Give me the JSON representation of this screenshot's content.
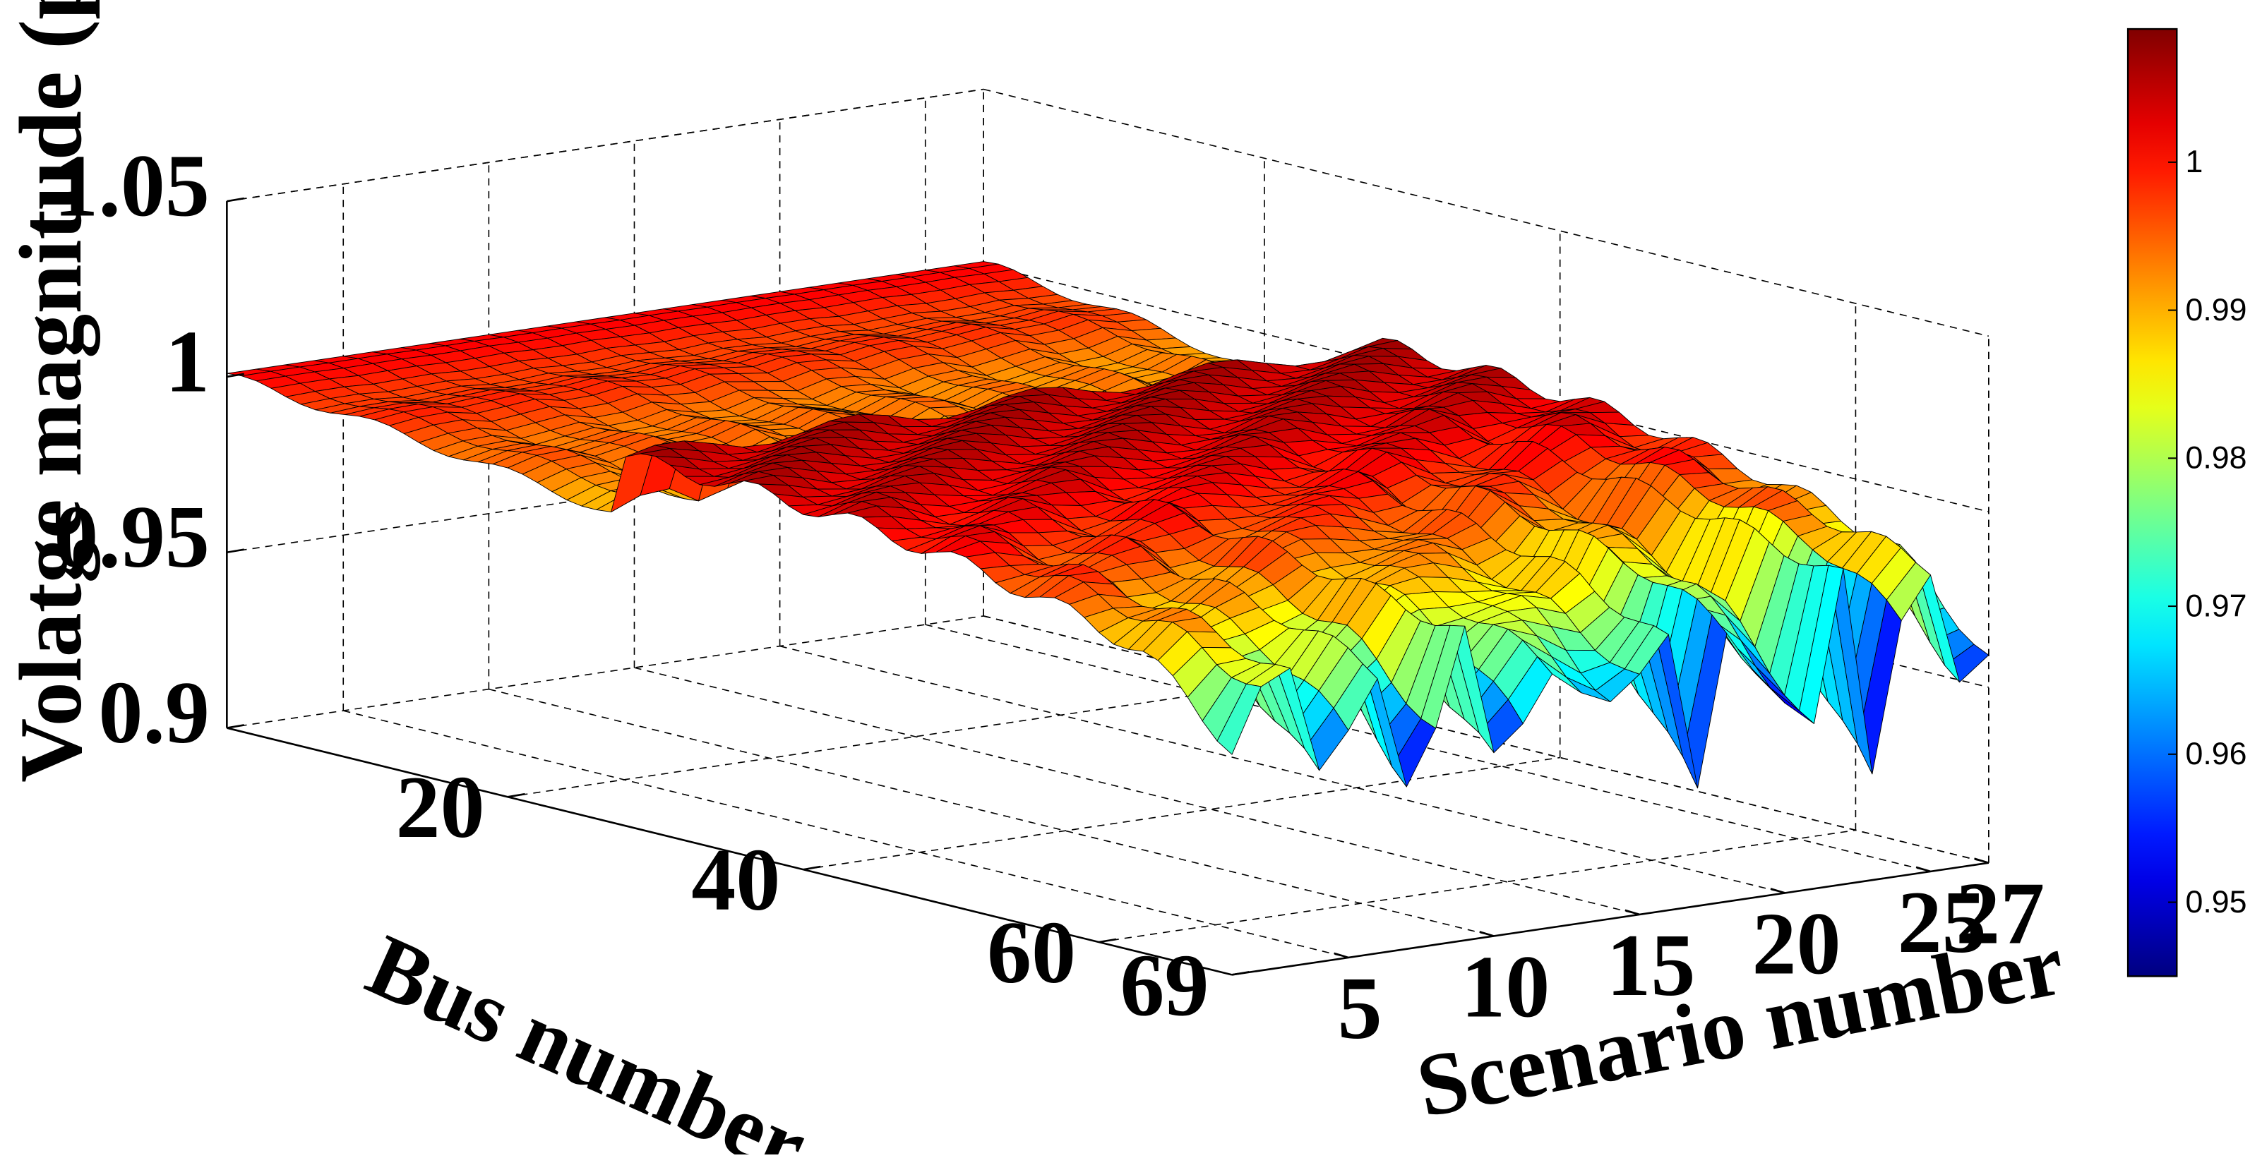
{
  "chart_data": {
    "type": "surface3d",
    "title": "",
    "zlabel": "Volatge magnitude (p.u)",
    "xlabel": "Scenario number",
    "ylabel": "Bus number",
    "x_range": [
      1,
      27
    ],
    "y_range": [
      1,
      69
    ],
    "zlim": [
      0.9,
      1.05
    ],
    "x_ticks": [
      "5",
      "10",
      "15",
      "20",
      "25",
      "27"
    ],
    "x_tick_values": [
      5,
      10,
      15,
      20,
      25,
      27
    ],
    "y_ticks": [
      "20",
      "40",
      "60",
      "69"
    ],
    "y_tick_values": [
      20,
      40,
      60,
      69
    ],
    "z_ticks": [
      "0.9",
      "0.95",
      "1",
      "1.05"
    ],
    "z_tick_values": [
      0.9,
      0.95,
      1.0,
      1.05
    ],
    "colormap": "jet",
    "clim": [
      0.945,
      1.009
    ],
    "colorbar_ticks": [
      "0.95",
      "0.96",
      "0.97",
      "0.98",
      "0.99",
      "1"
    ],
    "colorbar_tick_values": [
      0.95,
      0.96,
      0.97,
      0.98,
      0.99,
      1.0
    ],
    "grid": true,
    "substation_voltage": 1.0,
    "main_feeder_min_voltage": 0.982,
    "lateral_feeder_base_voltage": 1.005,
    "min_voltage_by_scenario": [
      0.977,
      0.975,
      0.972,
      0.968,
      0.965,
      0.963,
      0.962,
      0.968,
      0.973,
      0.958,
      0.97,
      0.952,
      0.968,
      0.975,
      0.949,
      0.97,
      0.955,
      0.972,
      0.948,
      0.97,
      0.946,
      0.975,
      0.947,
      0.978,
      0.972,
      0.962,
      0.97
    ]
  }
}
